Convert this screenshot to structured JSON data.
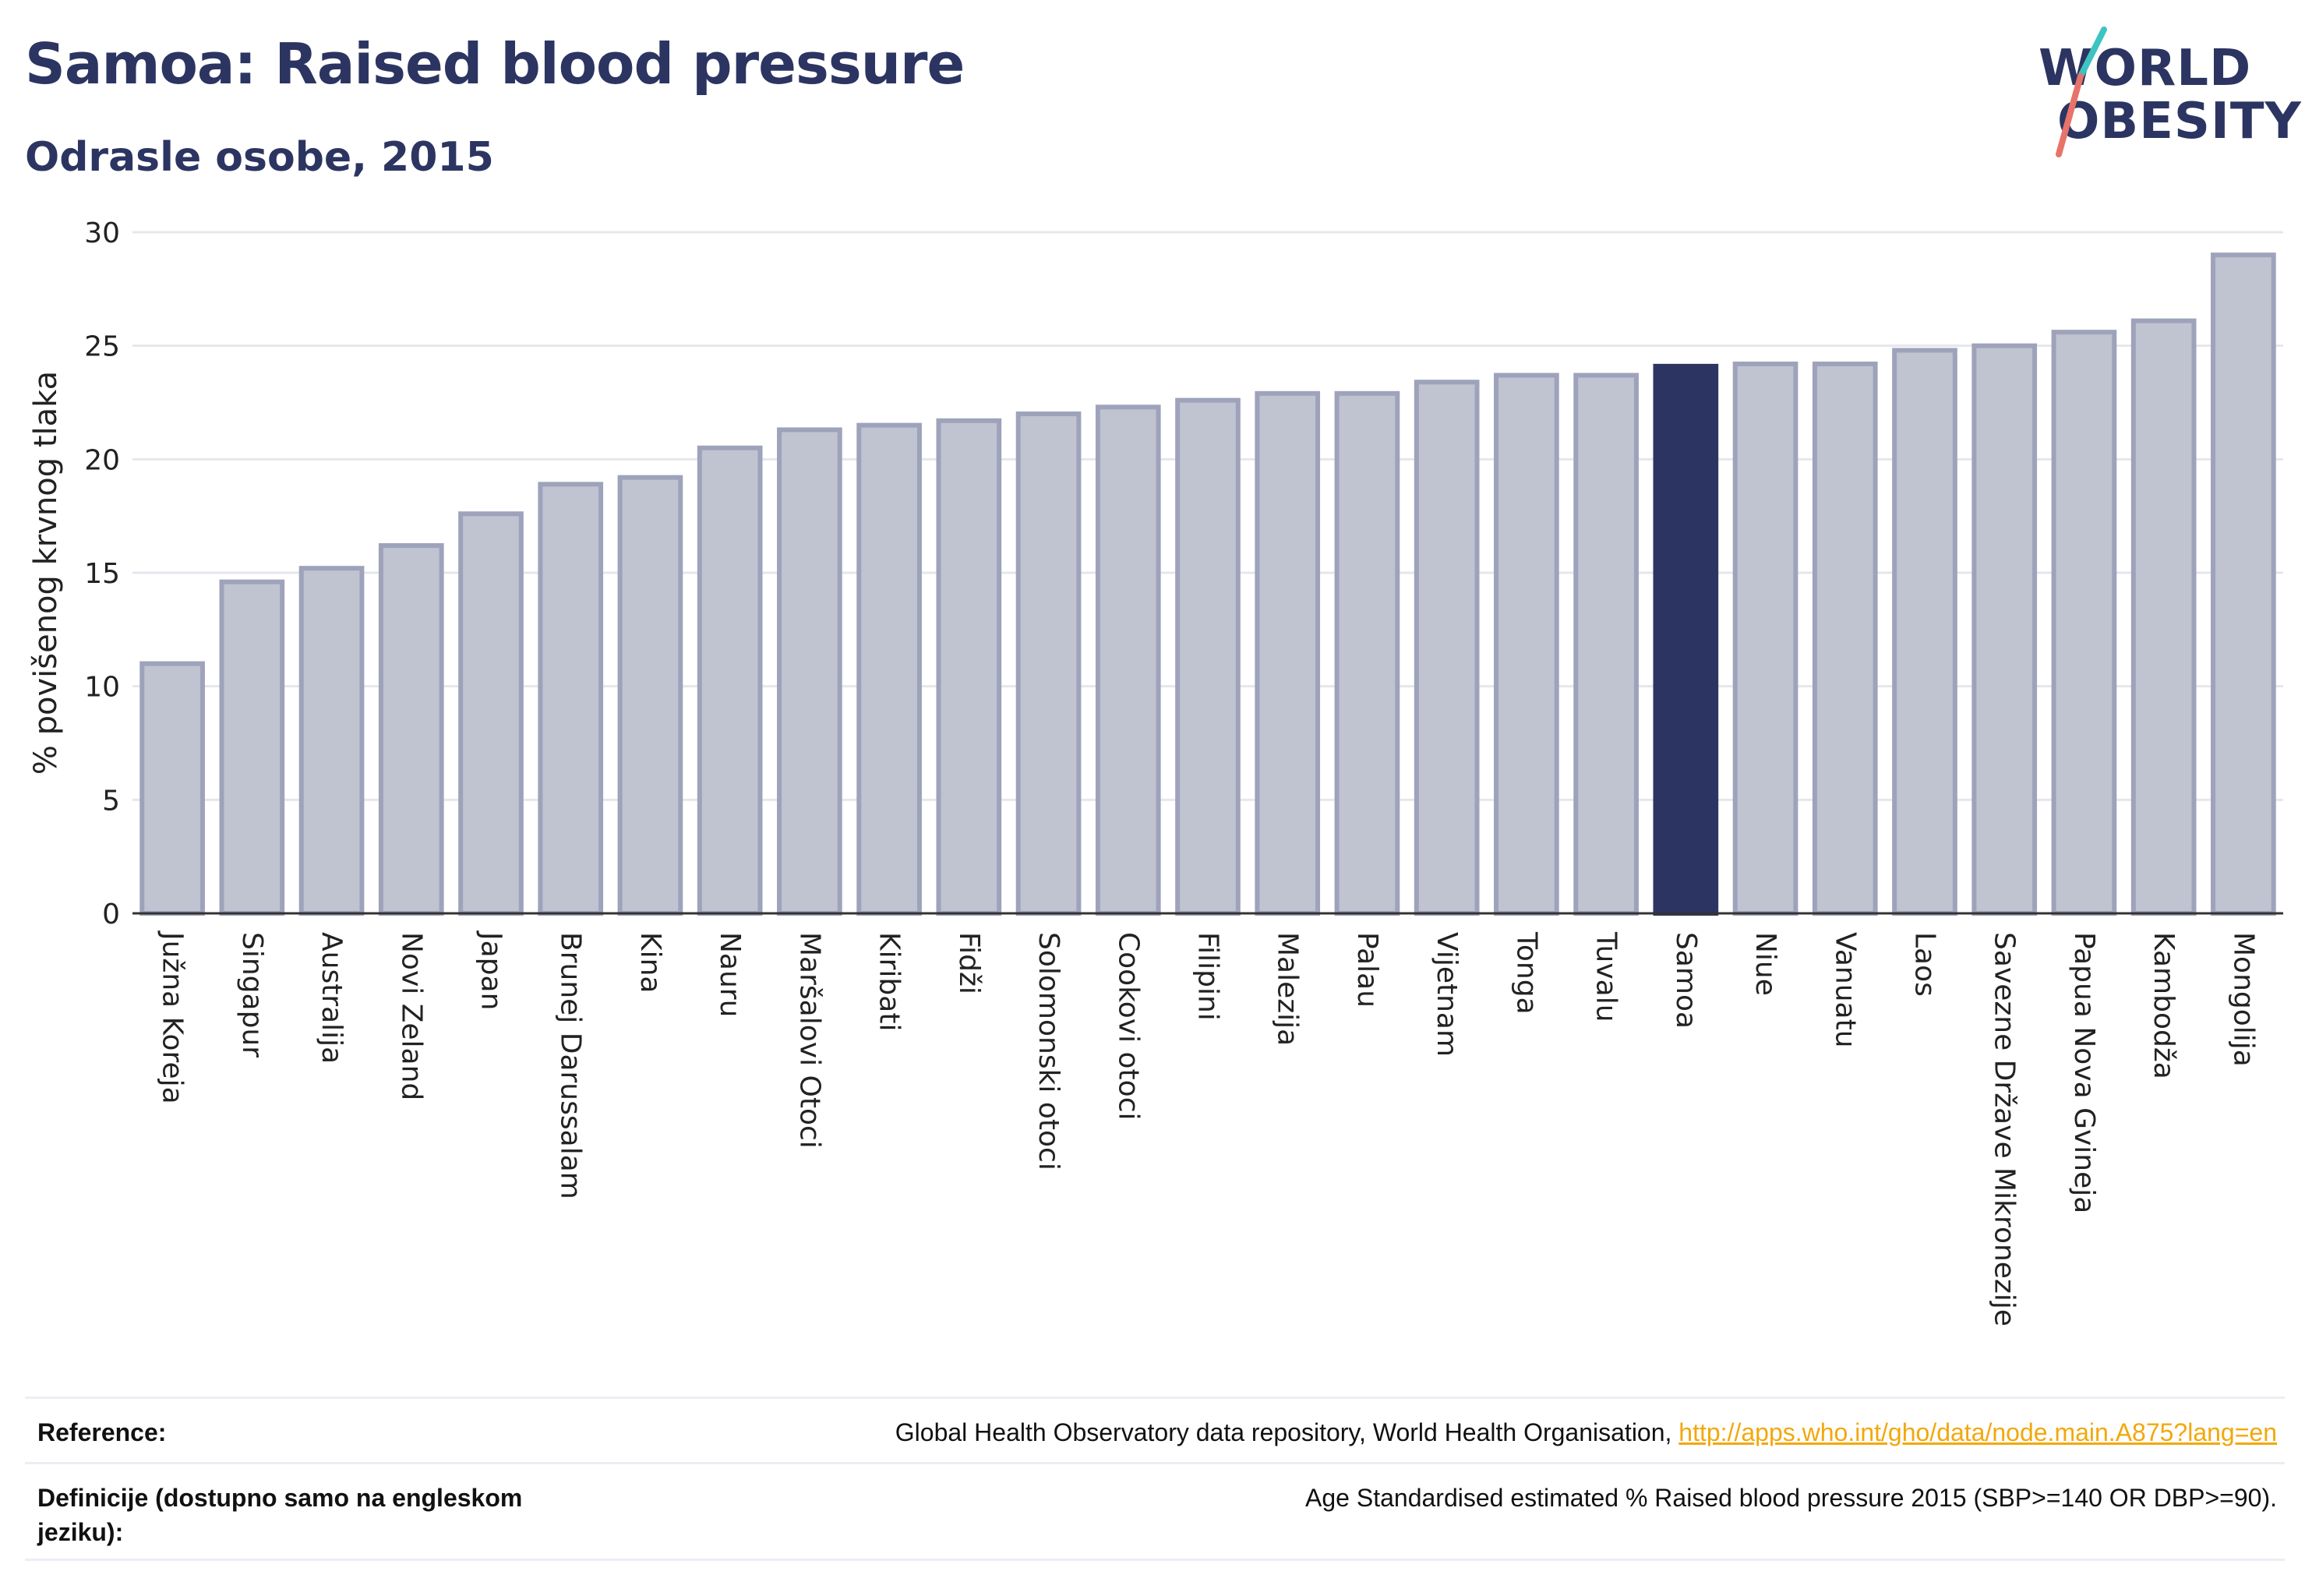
{
  "header": {
    "title": "Samoa: Raised blood pressure",
    "subtitle": "Odrasle osobe, 2015"
  },
  "logo": {
    "line1": "WORLD",
    "line2": "OBESITY"
  },
  "colors": {
    "highlight": "#2c3561",
    "bar_fill": "#c0c3d0",
    "bar_stroke": "#9ea3bb",
    "grid": "#e6e7ec",
    "accent_teal": "#3ec4c0",
    "accent_coral": "#e8736a",
    "link": "#f2a80b"
  },
  "chart_data": {
    "type": "bar",
    "ylabel": "% povišenog krvnog tlaka",
    "ylim": [
      0,
      30
    ],
    "yticks": [
      0,
      5,
      10,
      15,
      20,
      25,
      30
    ],
    "grid": true,
    "highlight": "Samoa",
    "categories": [
      "Južna Koreja",
      "Singapur",
      "Australija",
      "Novi Zeland",
      "Japan",
      "Brunej Darussalam",
      "Kina",
      "Nauru",
      "Maršalovi Otoci",
      "Kiribati",
      "Fidži",
      "Solomonski otoci",
      "Cookovi otoci",
      "Filipini",
      "Malezija",
      "Palau",
      "Vijetnam",
      "Tonga",
      "Tuvalu",
      "Samoa",
      "Niue",
      "Vanuatu",
      "Laos",
      "Savezne Države Mikronezije",
      "Papua Nova Gvineja",
      "Kambodža",
      "Mongolija"
    ],
    "values": [
      11.0,
      14.6,
      15.2,
      16.2,
      17.6,
      18.9,
      19.2,
      20.5,
      21.3,
      21.5,
      21.7,
      22.0,
      22.3,
      22.6,
      22.9,
      22.9,
      23.4,
      23.7,
      23.7,
      24.1,
      24.2,
      24.2,
      24.8,
      25.0,
      25.6,
      26.1,
      29.0
    ]
  },
  "footer": {
    "reference_label": "Reference:",
    "reference_text": "Global Health Observatory data repository, World Health Organisation, ",
    "reference_link": "http://apps.who.int/gho/data/node.main.A875?lang=en",
    "definition_label": "Definicije (dostupno samo na engleskom jeziku):",
    "definition_text": "Age Standardised estimated % Raised blood pressure 2015 (SBP>=140 OR DBP>=90)."
  }
}
